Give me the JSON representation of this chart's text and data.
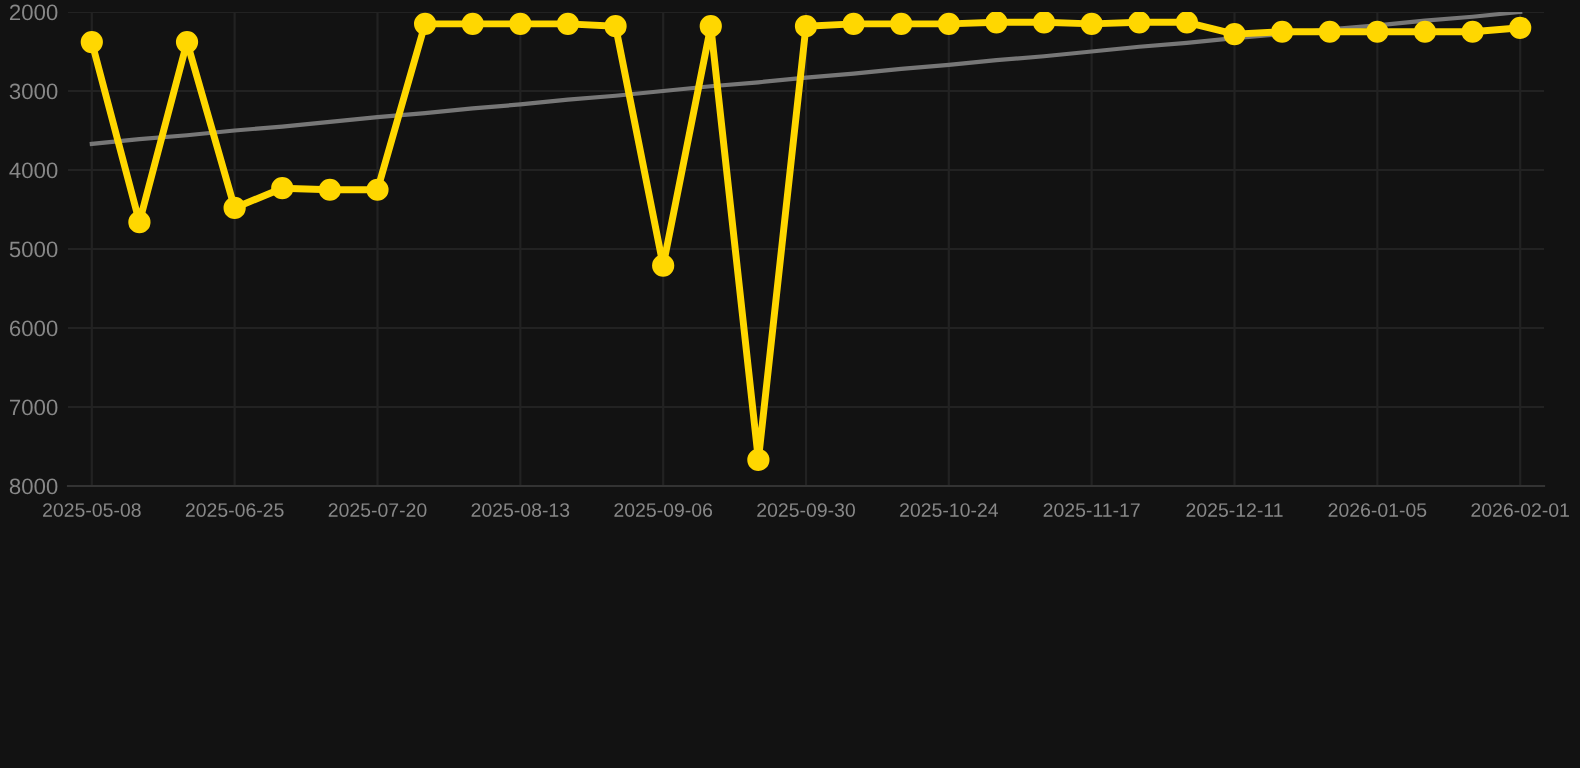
{
  "chart_data": {
    "type": "line",
    "categories": [
      "2025-05-08",
      null,
      null,
      "2025-06-25",
      null,
      null,
      "2025-07-20",
      null,
      null,
      "2025-08-13",
      null,
      null,
      "2025-09-06",
      null,
      null,
      "2025-09-30",
      null,
      null,
      "2025-10-24",
      null,
      null,
      "2025-11-17",
      null,
      null,
      "2025-12-11",
      null,
      null,
      "2026-01-05",
      null,
      null,
      "2026-02-01"
    ],
    "series": [
      {
        "color": "#ffd700",
        "marker": "circle",
        "values": [
          2380,
          4660,
          2380,
          4480,
          4230,
          4250,
          4250,
          2150,
          2150,
          2150,
          2150,
          2180,
          5210,
          2180,
          7670,
          2180,
          2150,
          2150,
          2150,
          2130,
          2130,
          2150,
          2130,
          2130,
          2280,
          2250,
          2250,
          2250,
          2250,
          2250,
          2200
        ]
      },
      {
        "color": "#777777",
        "marker": "none",
        "values": [
          3670,
          3610,
          3560,
          3500,
          3450,
          3390,
          3330,
          3280,
          3220,
          3170,
          3110,
          3060,
          3000,
          2940,
          2890,
          2830,
          2780,
          2720,
          2670,
          2610,
          2560,
          2500,
          2440,
          2390,
          2330,
          2280,
          2220,
          2170,
          2110,
          2060,
          2000
        ]
      }
    ],
    "ylim": [
      8000,
      2000
    ],
    "yticks": [
      2000,
      3000,
      4000,
      5000,
      6000,
      7000,
      8000
    ],
    "grid": true,
    "legend": false
  }
}
